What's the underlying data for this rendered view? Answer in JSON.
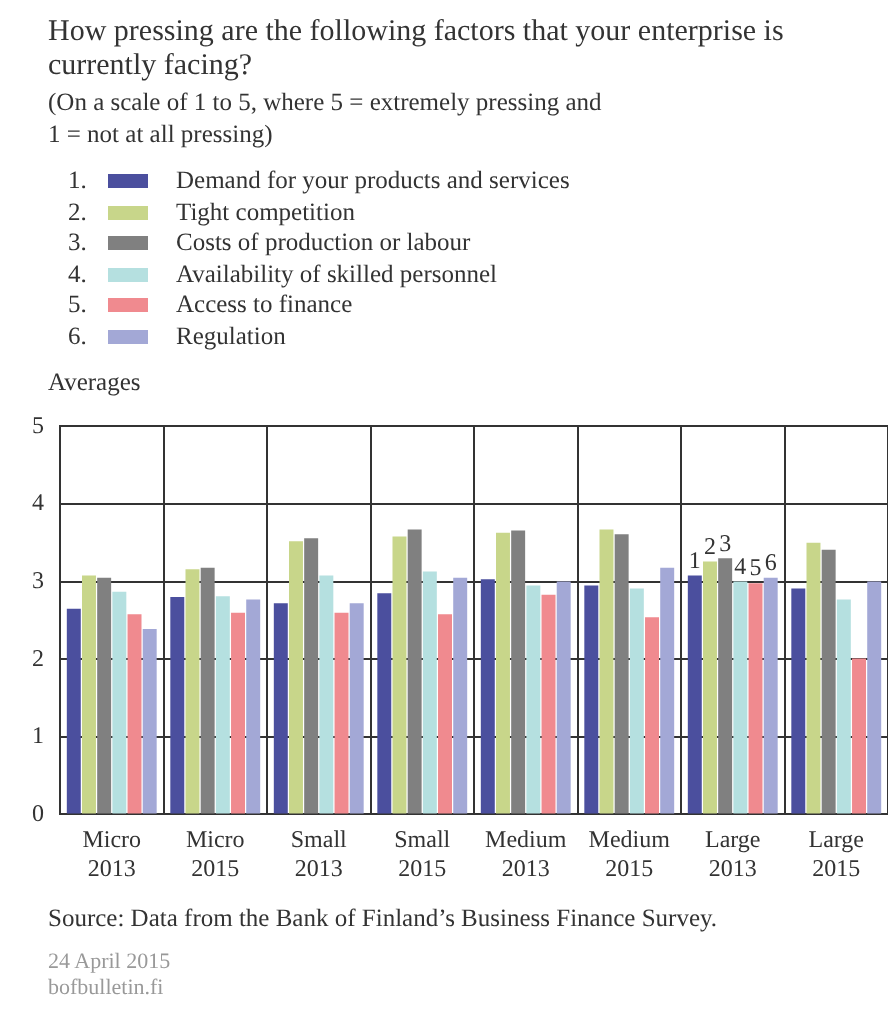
{
  "chart_data": {
    "type": "bar",
    "title": "How pressing are the following factors that your enterprise is currently facing?",
    "subtitle": "(On a scale of 1 to 5, where 5 = extremely pressing and 1 = not at all pressing)",
    "ylabel": "Averages",
    "categories": [
      "Micro 2013",
      "Micro 2015",
      "Small 2013",
      "Small 2015",
      "Medium 2013",
      "Medium 2015",
      "Large 2013",
      "Large 2015"
    ],
    "series": [
      {
        "name": "Demand for your products and services",
        "color": "#4b4f9e",
        "values": [
          2.65,
          2.8,
          2.72,
          2.85,
          3.03,
          2.95,
          3.08,
          2.91
        ]
      },
      {
        "name": "Tight competition",
        "color": "#c8d68a",
        "values": [
          3.08,
          3.16,
          3.52,
          3.58,
          3.63,
          3.67,
          3.26,
          3.5
        ]
      },
      {
        "name": "Costs of production or labour",
        "color": "#808080",
        "values": [
          3.05,
          3.18,
          3.56,
          3.67,
          3.66,
          3.61,
          3.3,
          3.41
        ]
      },
      {
        "name": "Availability of skilled personnel",
        "color": "#b5e0e0",
        "values": [
          2.87,
          2.81,
          3.08,
          3.13,
          2.95,
          2.91,
          3.0,
          2.77
        ]
      },
      {
        "name": "Access to finance",
        "color": "#f08a8f",
        "values": [
          2.58,
          2.6,
          2.6,
          2.58,
          2.83,
          2.54,
          2.98,
          2.01
        ]
      },
      {
        "name": "Regulation",
        "color": "#a3a8d6",
        "values": [
          2.39,
          2.77,
          2.72,
          3.05,
          3.0,
          3.18,
          3.05,
          3.0
        ]
      }
    ],
    "ylim": [
      0,
      5
    ],
    "yticks": [
      0,
      1,
      2,
      3,
      4,
      5
    ],
    "grid": true,
    "legend": "top left",
    "annotations": [
      {
        "text": "1",
        "x": "Large 2013",
        "y": 3.08
      },
      {
        "text": "2",
        "x": "Large 2013",
        "y": 3.26
      },
      {
        "text": "3",
        "x": "Large 2013",
        "y": 3.3
      },
      {
        "text": "4",
        "x": "Large 2013",
        "y": 3.0
      },
      {
        "text": "5",
        "x": "Large 2013",
        "y": 2.98
      },
      {
        "text": "6",
        "x": "Large 2013",
        "y": 3.05
      },
      "1.",
      "2.",
      "3.",
      "4.",
      "5.",
      "6.",
      "Source: Data from the Bank of Finland’s Business Finance Survey.",
      "24 April 2015",
      "bofbulletin.fi"
    ]
  }
}
